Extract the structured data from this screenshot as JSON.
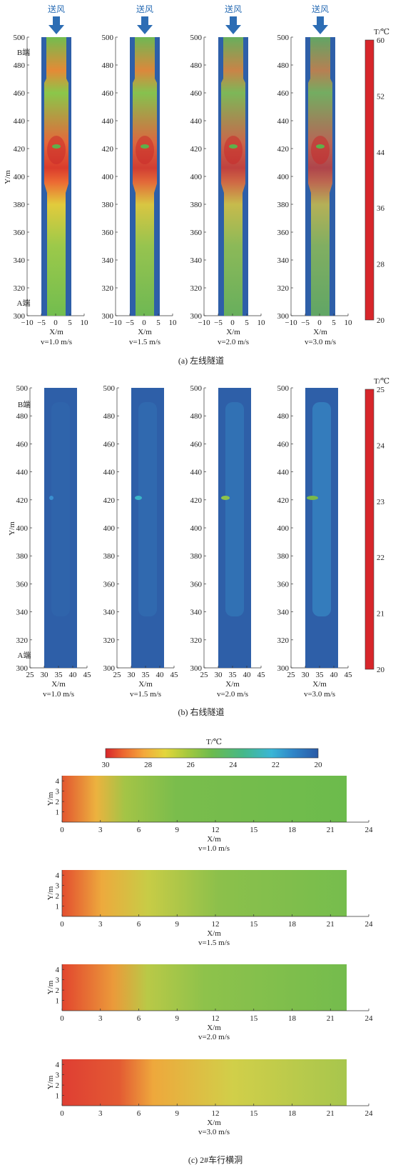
{
  "chart_data": [
    {
      "type": "heatmap",
      "panel": "a",
      "caption": "(a) 左线隧道",
      "inflow_label": "送风",
      "colorbar": {
        "title": "T/℃",
        "min": 20,
        "max": 60,
        "ticks": [
          "60",
          "52",
          "44",
          "36",
          "28",
          "20"
        ]
      },
      "ylabel": "Y/m",
      "y_ticks": [
        "500",
        "480",
        "460",
        "440",
        "420",
        "400",
        "380",
        "360",
        "340",
        "320",
        "300"
      ],
      "ylim": [
        300,
        500
      ],
      "end_labels": {
        "B": "B端",
        "A": "A端"
      },
      "xlabel": "X/m",
      "x_ticks": [
        "−10",
        "−5",
        "0",
        "5",
        "10"
      ],
      "xlim": [
        -10,
        10
      ],
      "maps": [
        {
          "case": "v=1.0 m/s",
          "peak_T": 58
        },
        {
          "case": "v=1.5 m/s",
          "peak_T": 57
        },
        {
          "case": "v=2.0 m/s",
          "peak_T": 56
        },
        {
          "case": "v=3.0 m/s",
          "peak_T": 55
        }
      ]
    },
    {
      "type": "heatmap",
      "panel": "b",
      "caption": "(b) 右线隧道",
      "colorbar": {
        "title": "T/℃",
        "min": 20,
        "max": 25,
        "ticks": [
          "25",
          "24",
          "23",
          "22",
          "21",
          "20"
        ]
      },
      "ylabel": "Y/m",
      "y_ticks": [
        "500",
        "480",
        "460",
        "440",
        "420",
        "400",
        "380",
        "360",
        "340",
        "320",
        "300"
      ],
      "ylim": [
        300,
        500
      ],
      "end_labels": {
        "B": "B端",
        "A": "A端"
      },
      "xlabel": "X/m",
      "x_ticks": [
        "25",
        "30",
        "35",
        "40",
        "45"
      ],
      "xlim": [
        25,
        45
      ],
      "maps": [
        {
          "case": "v=1.0 m/s",
          "peak_T": 21.2
        },
        {
          "case": "v=1.5 m/s",
          "peak_T": 22.0
        },
        {
          "case": "v=2.0 m/s",
          "peak_T": 22.6
        },
        {
          "case": "v=3.0 m/s",
          "peak_T": 23.0
        }
      ]
    },
    {
      "type": "heatmap",
      "panel": "c",
      "caption": "(c) 2#车行横洞",
      "colorbar": {
        "title": "T/℃",
        "min": 20,
        "max": 30,
        "ticks": [
          "30",
          "28",
          "26",
          "24",
          "22",
          "20"
        ]
      },
      "ylabel": "Y/m",
      "y_ticks": [
        "1",
        "2",
        "3",
        "4"
      ],
      "ylim": [
        0,
        4.5
      ],
      "xlabel": "X/m",
      "x_ticks": [
        "0",
        "3",
        "6",
        "9",
        "12",
        "15",
        "18",
        "21",
        "24"
      ],
      "xlim": [
        0,
        24
      ],
      "maps": [
        {
          "case": "v=1.0 m/s",
          "peak_T": 29
        },
        {
          "case": "v=1.5 m/s",
          "peak_T": 29.5
        },
        {
          "case": "v=2.0 m/s",
          "peak_T": 30
        },
        {
          "case": "v=3.0 m/s",
          "peak_T": 30
        }
      ]
    }
  ]
}
